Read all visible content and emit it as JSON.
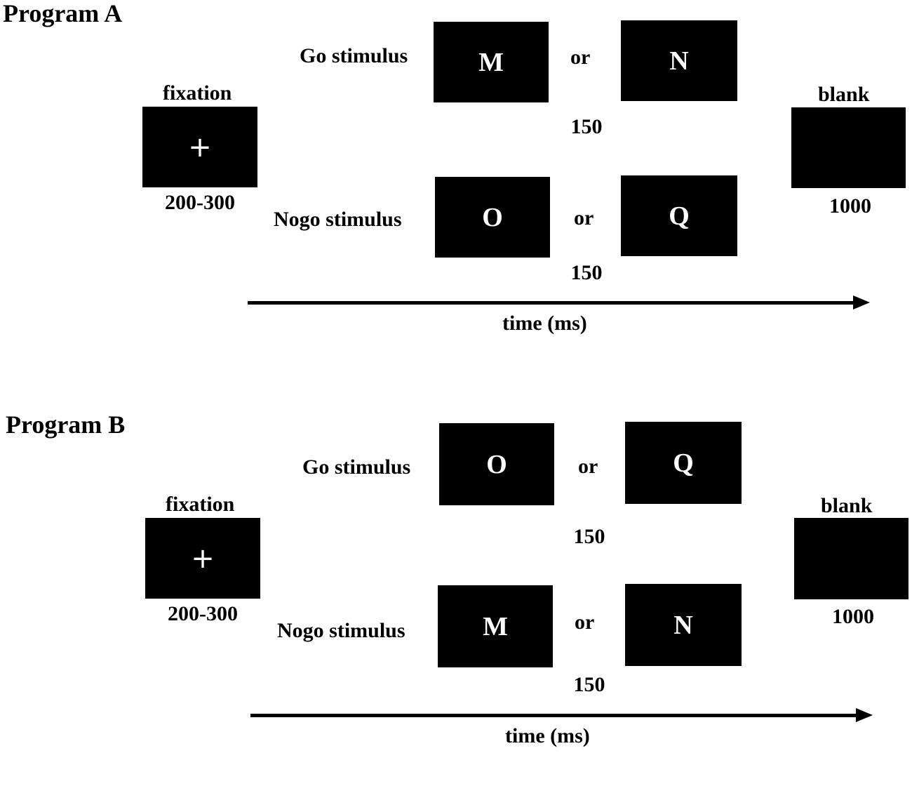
{
  "programs": [
    {
      "title": "Program A",
      "fixation": {
        "label": "fixation",
        "symbol": "+",
        "duration": "200-300"
      },
      "go": {
        "label": "Go stimulus",
        "letters": [
          "M",
          "N"
        ],
        "connector": "or",
        "duration": "150"
      },
      "nogo": {
        "label": "Nogo stimulus",
        "letters": [
          "O",
          "Q"
        ],
        "connector": "or",
        "duration": "150"
      },
      "blank": {
        "label": "blank",
        "duration": "1000"
      },
      "axis_label": "time (ms)"
    },
    {
      "title": "Program B",
      "fixation": {
        "label": "fixation",
        "symbol": "+",
        "duration": "200-300"
      },
      "go": {
        "label": "Go stimulus",
        "letters": [
          "O",
          "Q"
        ],
        "connector": "or",
        "duration": "150"
      },
      "nogo": {
        "label": "Nogo stimulus",
        "letters": [
          "M",
          "N"
        ],
        "connector": "or",
        "duration": "150"
      },
      "blank": {
        "label": "blank",
        "duration": "1000"
      },
      "axis_label": "time (ms)"
    }
  ]
}
